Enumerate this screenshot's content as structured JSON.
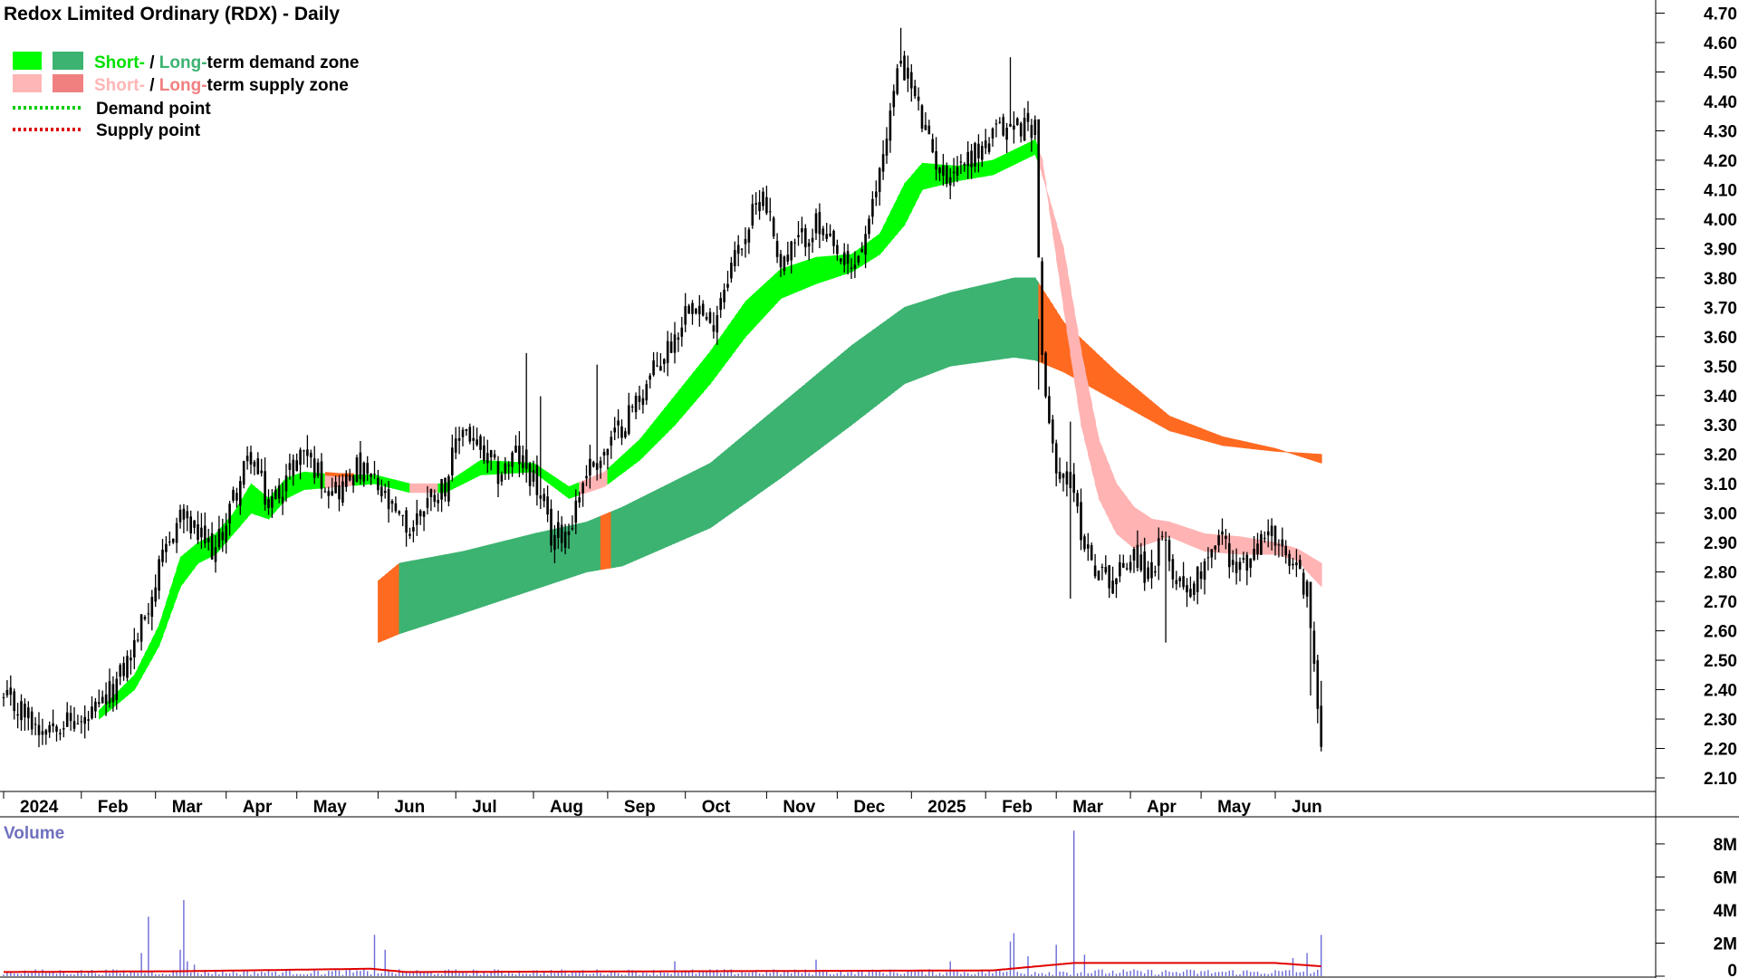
{
  "chart_data": {
    "type": "candlestick",
    "title": "Redox Limited Ordinary (RDX) - Daily",
    "legend": {
      "items": [
        {
          "key": "demand_zone",
          "parts": [
            "Short-",
            " / ",
            "Long-",
            "term demand zone"
          ],
          "colors": [
            "#00ff00",
            "#3cb371"
          ]
        },
        {
          "key": "supply_zone",
          "parts": [
            "Short-",
            " / ",
            "Long-",
            "term supply zone"
          ],
          "colors": [
            "#ffb6b6",
            "#f08080"
          ]
        },
        {
          "key": "demand_point",
          "label": "Demand point",
          "color": "#00cc00"
        },
        {
          "key": "supply_point",
          "label": "Supply point",
          "color": "#dd0000"
        }
      ],
      "placement": "top-left"
    },
    "x_labels": [
      "2024",
      "Feb",
      "Mar",
      "Apr",
      "May",
      "Jun",
      "Jul",
      "Aug",
      "Sep",
      "Oct",
      "Nov",
      "Dec",
      "2025",
      "Feb",
      "Mar",
      "Apr",
      "May",
      "Jun"
    ],
    "y_ticks": [
      "4.70",
      "4.60",
      "4.50",
      "4.40",
      "4.30",
      "4.20",
      "4.10",
      "4.00",
      "3.90",
      "3.80",
      "3.70",
      "3.60",
      "3.50",
      "3.40",
      "3.30",
      "3.20",
      "3.10",
      "3.00",
      "2.90",
      "2.80",
      "2.70",
      "2.60",
      "2.50",
      "2.40",
      "2.30",
      "2.20",
      "2.10"
    ],
    "ylim": [
      2.06,
      4.72
    ],
    "price_anchors": [
      [
        0,
        2.36
      ],
      [
        5,
        2.33
      ],
      [
        10,
        2.27
      ],
      [
        15,
        2.3
      ],
      [
        22,
        2.28
      ],
      [
        27,
        2.33
      ],
      [
        32,
        2.42
      ],
      [
        37,
        2.55
      ],
      [
        44,
        2.8
      ],
      [
        50,
        3.0
      ],
      [
        55,
        2.92
      ],
      [
        60,
        2.87
      ],
      [
        65,
        3.05
      ],
      [
        70,
        3.2
      ],
      [
        75,
        3.02
      ],
      [
        80,
        3.12
      ],
      [
        85,
        3.22
      ],
      [
        90,
        3.12
      ],
      [
        95,
        3.08
      ],
      [
        100,
        3.15
      ],
      [
        105,
        3.1
      ],
      [
        110,
        3.0
      ],
      [
        115,
        2.94
      ],
      [
        120,
        3.05
      ],
      [
        125,
        3.1
      ],
      [
        130,
        3.3
      ],
      [
        135,
        3.2
      ],
      [
        140,
        3.13
      ],
      [
        145,
        3.2
      ],
      [
        150,
        3.12
      ],
      [
        155,
        2.92
      ],
      [
        160,
        2.95
      ],
      [
        165,
        3.15
      ],
      [
        170,
        3.2
      ],
      [
        175,
        3.3
      ],
      [
        180,
        3.4
      ],
      [
        185,
        3.5
      ],
      [
        190,
        3.6
      ],
      [
        195,
        3.75
      ],
      [
        200,
        3.62
      ],
      [
        205,
        3.82
      ],
      [
        210,
        3.95
      ],
      [
        215,
        4.1
      ],
      [
        220,
        3.85
      ],
      [
        225,
        3.92
      ],
      [
        230,
        3.98
      ],
      [
        235,
        3.88
      ],
      [
        240,
        3.82
      ],
      [
        245,
        3.97
      ],
      [
        250,
        4.3
      ],
      [
        254,
        4.55
      ],
      [
        257,
        4.45
      ],
      [
        262,
        4.25
      ],
      [
        266,
        4.15
      ],
      [
        272,
        4.2
      ],
      [
        278,
        4.25
      ],
      [
        282,
        4.3
      ],
      [
        287,
        4.32
      ],
      [
        292,
        4.32
      ],
      [
        294,
        3.5
      ],
      [
        297,
        3.2
      ],
      [
        302,
        3.1
      ],
      [
        306,
        2.9
      ],
      [
        310,
        2.8
      ],
      [
        315,
        2.78
      ],
      [
        320,
        2.88
      ],
      [
        324,
        2.78
      ],
      [
        328,
        2.9
      ],
      [
        332,
        2.78
      ],
      [
        337,
        2.75
      ],
      [
        341,
        2.88
      ],
      [
        345,
        2.92
      ],
      [
        349,
        2.8
      ],
      [
        354,
        2.85
      ],
      [
        358,
        2.96
      ],
      [
        362,
        2.85
      ],
      [
        366,
        2.8
      ],
      [
        369,
        2.75
      ],
      [
        371,
        2.45
      ],
      [
        373,
        2.25
      ]
    ],
    "short_zone": {
      "anchors": [
        [
          27,
          2.33,
          2.3
        ],
        [
          37,
          2.45,
          2.4
        ],
        [
          44,
          2.62,
          2.55
        ],
        [
          50,
          2.85,
          2.75
        ],
        [
          55,
          2.9,
          2.83
        ],
        [
          60,
          2.93,
          2.86
        ],
        [
          65,
          3.0,
          2.93
        ],
        [
          70,
          3.1,
          3.0
        ],
        [
          75,
          3.05,
          2.98
        ],
        [
          80,
          3.12,
          3.05
        ],
        [
          85,
          3.14,
          3.08
        ],
        [
          95,
          3.13,
          3.09
        ],
        [
          105,
          3.13,
          3.1
        ],
        [
          115,
          3.1,
          3.07
        ],
        [
          125,
          3.1,
          3.07
        ],
        [
          135,
          3.18,
          3.13
        ],
        [
          150,
          3.17,
          3.14
        ],
        [
          160,
          3.09,
          3.05
        ],
        [
          170,
          3.14,
          3.09
        ],
        [
          180,
          3.25,
          3.18
        ],
        [
          190,
          3.4,
          3.3
        ],
        [
          200,
          3.55,
          3.44
        ],
        [
          210,
          3.72,
          3.6
        ],
        [
          220,
          3.83,
          3.73
        ],
        [
          230,
          3.87,
          3.78
        ],
        [
          240,
          3.88,
          3.82
        ],
        [
          248,
          3.95,
          3.88
        ],
        [
          255,
          4.12,
          3.98
        ],
        [
          260,
          4.19,
          4.1
        ],
        [
          270,
          4.18,
          4.13
        ],
        [
          280,
          4.2,
          4.15
        ],
        [
          292,
          4.27,
          4.22
        ],
        [
          294,
          4.2,
          4.15
        ],
        [
          300,
          3.7,
          3.9
        ],
        [
          305,
          3.3,
          3.55
        ],
        [
          310,
          3.05,
          3.25
        ],
        [
          315,
          2.93,
          3.1
        ],
        [
          320,
          2.88,
          3.02
        ],
        [
          325,
          2.9,
          2.98
        ],
        [
          330,
          2.92,
          2.97
        ],
        [
          340,
          2.87,
          2.93
        ],
        [
          350,
          2.86,
          2.92
        ],
        [
          360,
          2.86,
          2.9
        ],
        [
          366,
          2.84,
          2.88
        ],
        [
          373,
          2.75,
          2.83
        ]
      ],
      "phases": [
        [
          0,
          26,
          "none"
        ],
        [
          27,
          90,
          "demand"
        ],
        [
          91,
          98,
          "supply"
        ],
        [
          99,
          114,
          "demand"
        ],
        [
          115,
          122,
          "supply"
        ],
        [
          123,
          162,
          "demand"
        ],
        [
          163,
          170,
          "supply"
        ],
        [
          171,
          292,
          "demand"
        ],
        [
          293,
          373,
          "supply"
        ]
      ]
    },
    "long_zone": {
      "anchors": [
        [
          106,
          2.77,
          2.56
        ],
        [
          112,
          2.83,
          2.59
        ],
        [
          130,
          2.87,
          2.66
        ],
        [
          150,
          2.93,
          2.74
        ],
        [
          165,
          2.97,
          2.8
        ],
        [
          175,
          3.02,
          2.82
        ],
        [
          200,
          3.17,
          2.95
        ],
        [
          220,
          3.37,
          3.12
        ],
        [
          240,
          3.57,
          3.3
        ],
        [
          255,
          3.7,
          3.44
        ],
        [
          268,
          3.75,
          3.5
        ],
        [
          286,
          3.8,
          3.53
        ],
        [
          292,
          3.8,
          3.52
        ],
        [
          300,
          3.65,
          3.48
        ],
        [
          315,
          3.48,
          3.38
        ],
        [
          330,
          3.33,
          3.28
        ],
        [
          345,
          3.26,
          3.23
        ],
        [
          360,
          3.22,
          3.21
        ],
        [
          373,
          3.17,
          3.2
        ]
      ],
      "phases": [
        [
          106,
          111,
          "supply"
        ],
        [
          112,
          168,
          "demand"
        ],
        [
          169,
          171,
          "supply"
        ],
        [
          172,
          292,
          "demand"
        ],
        [
          293,
          373,
          "supply"
        ]
      ]
    },
    "volume": {
      "label": "Volume",
      "y_ticks": [
        "8M",
        "6M",
        "4M",
        "2M",
        "0"
      ],
      "ylim": [
        0,
        9.2
      ],
      "base_millions": 0.25,
      "spikes_millions": [
        [
          39,
          1.4
        ],
        [
          41,
          3.6
        ],
        [
          50,
          1.6
        ],
        [
          51,
          4.6
        ],
        [
          52,
          0.9
        ],
        [
          54,
          0.7
        ],
        [
          105,
          2.5
        ],
        [
          108,
          1.6
        ],
        [
          190,
          0.9
        ],
        [
          230,
          1.0
        ],
        [
          268,
          0.9
        ],
        [
          285,
          2.1
        ],
        [
          286,
          2.6
        ],
        [
          290,
          1.2
        ],
        [
          298,
          1.9
        ],
        [
          303,
          8.8
        ],
        [
          306,
          1.3
        ],
        [
          365,
          1.1
        ],
        [
          369,
          1.4
        ],
        [
          373,
          2.5
        ]
      ],
      "ma_anchors": [
        [
          0,
          0.25
        ],
        [
          50,
          0.3
        ],
        [
          104,
          0.45
        ],
        [
          114,
          0.25
        ],
        [
          280,
          0.35
        ],
        [
          303,
          0.8
        ],
        [
          360,
          0.8
        ],
        [
          373,
          0.6
        ]
      ]
    }
  }
}
